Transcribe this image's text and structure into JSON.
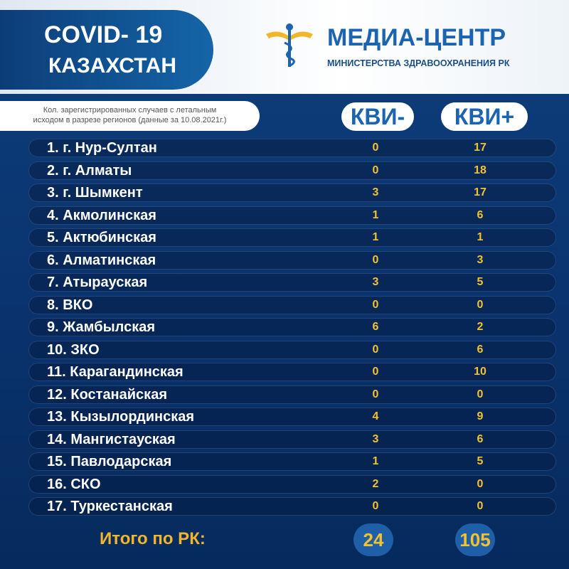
{
  "header": {
    "title_line1": "COVID- 19",
    "title_line2": "КАЗАХСТАН",
    "logo_title": "МЕДИА-ЦЕНТР",
    "logo_subtitle": "МИНИСТЕРСТВА ЗДРАВООХРАНЕНИЯ РК"
  },
  "note": {
    "line1": "Кол. зарегистрированных  случаев с летальным",
    "line2": "исходом в разрезе регионов  (данные за 10.08.2021г.)"
  },
  "table": {
    "columns": [
      "КВИ-",
      "КВИ+"
    ],
    "rows": [
      [
        "1. г. Нур-Султан",
        0,
        17
      ],
      [
        "2. г. Алматы",
        0,
        18
      ],
      [
        "3. г. Шымкент",
        3,
        17
      ],
      [
        "4. Акмолинская",
        1,
        6
      ],
      [
        "5. Актюбинская",
        1,
        1
      ],
      [
        "6. Алматинская",
        0,
        3
      ],
      [
        "7. Атырауская",
        3,
        5
      ],
      [
        "8. ВКО",
        0,
        0
      ],
      [
        "9. Жамбылская",
        6,
        2
      ],
      [
        "10. ЗКО",
        0,
        6
      ],
      [
        "11. Карагандинская",
        0,
        10
      ],
      [
        "12. Костанайская",
        0,
        0
      ],
      [
        "13. Кызылординская",
        4,
        9
      ],
      [
        "14. Мангистауская",
        3,
        6
      ],
      [
        "15. Павлодарская",
        1,
        5
      ],
      [
        "16. СКО",
        2,
        0
      ],
      [
        "17. Туркестанская",
        0,
        0
      ]
    ],
    "total": [
      "Итого по РК:",
      24,
      105
    ]
  }
}
